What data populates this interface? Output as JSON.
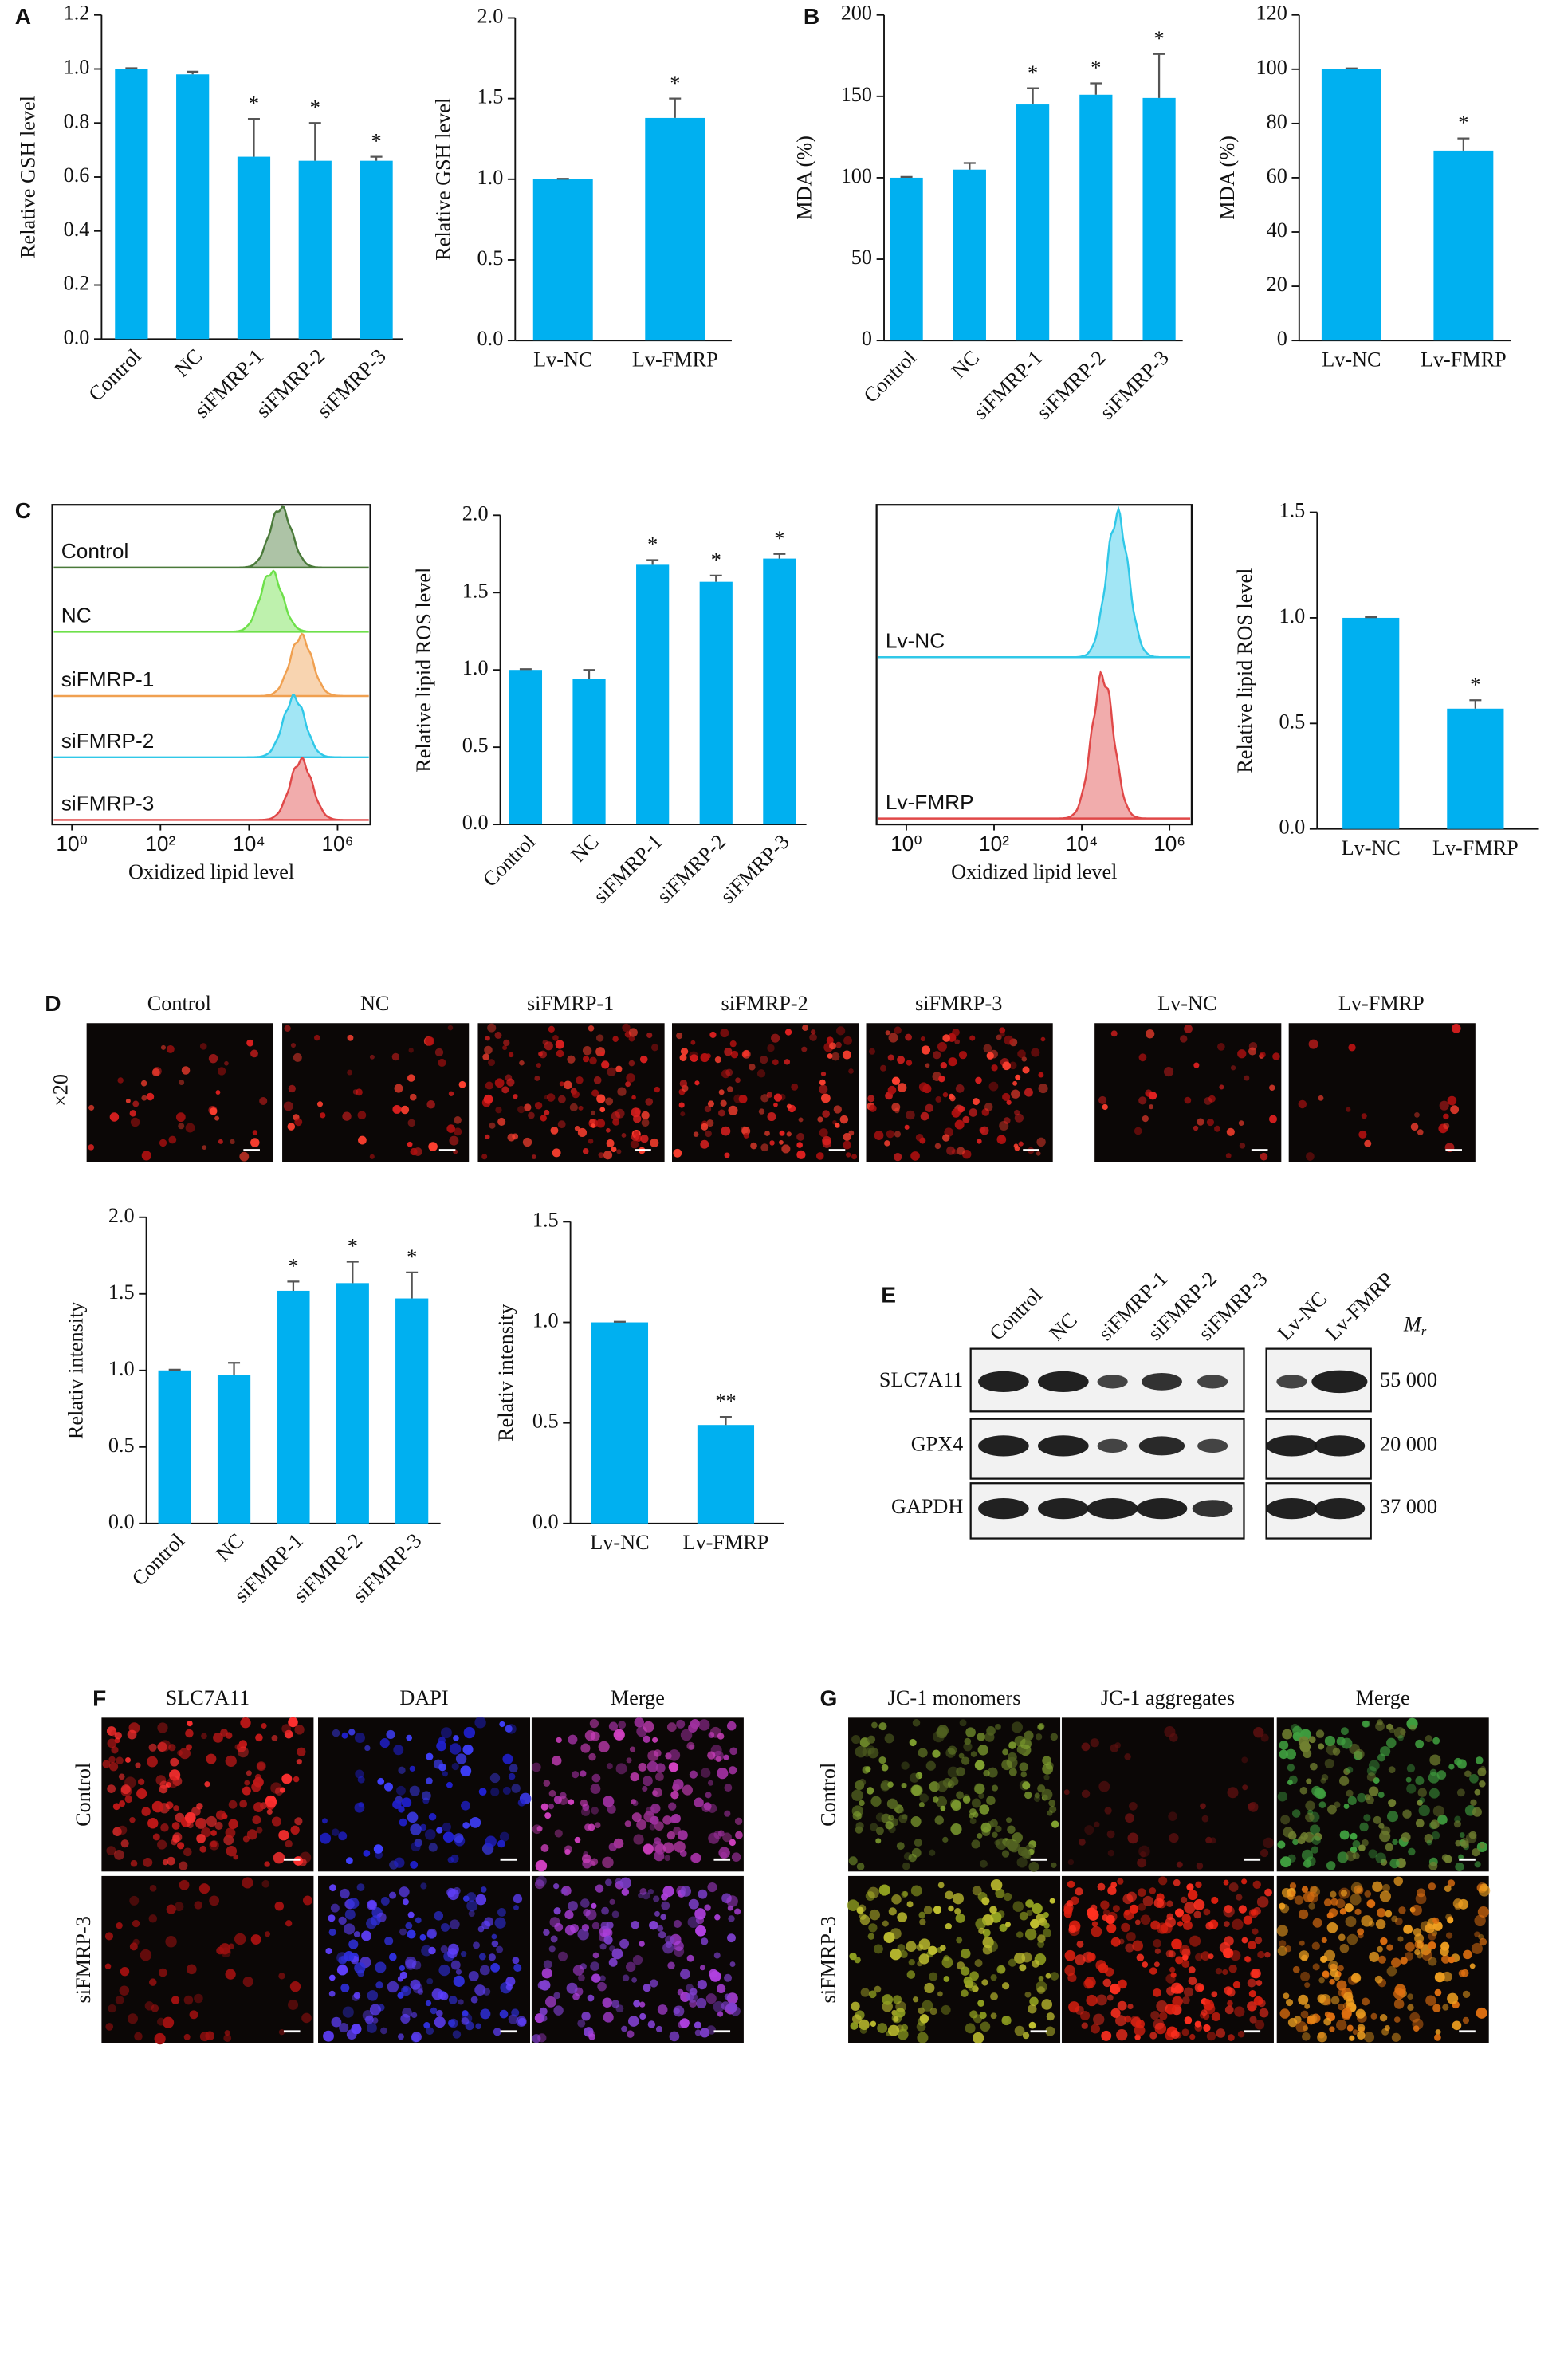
{
  "panel_labels": [
    "A",
    "B",
    "C",
    "D",
    "E",
    "F",
    "G"
  ],
  "chart_data": [
    {
      "type": "bar",
      "ylabel": "Relative GSH level",
      "color": "#00b0f0",
      "categories": [
        "Control",
        "NC",
        "siFMRP-1",
        "siFMRP-2",
        "siFMRP-3"
      ],
      "values": [
        1.0,
        0.98,
        0.675,
        0.66,
        0.66
      ],
      "errors": [
        0.003,
        0.01,
        0.14,
        0.14,
        0.015
      ],
      "significance": [
        null,
        null,
        "*",
        "*",
        "*"
      ],
      "ylim": [
        0,
        1.2
      ],
      "yticks": [
        {
          "value": 0,
          "label": "0.0"
        },
        0.2,
        0.4,
        0.6,
        0.8,
        {
          "value": 1,
          "label": "1.0"
        },
        1.2
      ]
    },
    {
      "type": "bar",
      "ylabel": "Relative GSH level",
      "color": "#00b0f0",
      "categories": [
        "Lv-NC",
        "Lv-FMRP"
      ],
      "values": [
        1.0,
        1.38
      ],
      "errors": [
        0.003,
        0.12
      ],
      "significance": [
        null,
        "*"
      ],
      "ylim": [
        0,
        2
      ],
      "yticks": [
        {
          "value": 0,
          "label": "0.0"
        },
        0.5,
        {
          "value": 1,
          "label": "1.0"
        },
        1.5,
        {
          "value": 2,
          "label": "2.0"
        }
      ]
    },
    {
      "type": "bar",
      "ylabel": "MDA (%)",
      "color": "#00b0f0",
      "categories": [
        "Control",
        "NC",
        "siFMRP-1",
        "siFMRP-2",
        "siFMRP-3"
      ],
      "values": [
        100,
        105,
        145,
        151,
        149
      ],
      "errors": [
        0.5,
        4,
        10,
        7,
        27
      ],
      "significance": [
        null,
        null,
        "*",
        "*",
        "*"
      ],
      "ylim": [
        0,
        200
      ],
      "yticks": [
        0,
        50,
        100,
        150,
        200
      ]
    },
    {
      "type": "bar",
      "ylabel": "MDA (%)",
      "color": "#00b0f0",
      "categories": [
        "Lv-NC",
        "Lv-FMRP"
      ],
      "values": [
        100,
        70
      ],
      "errors": [
        0.3,
        4.5
      ],
      "significance": [
        null,
        "*"
      ],
      "ylim": [
        0,
        120
      ],
      "yticks": [
        0,
        20,
        40,
        60,
        80,
        100,
        120
      ]
    },
    {
      "type": "density",
      "xlabel": "Oxidized lipid level",
      "log_x": true,
      "xlim": [
        0.36,
        5500000
      ],
      "xticks": [
        {
          "value": 1,
          "label": "10⁰"
        },
        {
          "value": 100,
          "label": "10²"
        },
        {
          "value": 10000,
          "label": "10⁴"
        },
        {
          "value": 1000000,
          "label": "10⁶"
        }
      ],
      "series": [
        {
          "name": "Control",
          "color": "#4a7a3a",
          "peak": 52000
        },
        {
          "name": "NC",
          "color": "#6ee04a",
          "peak": 32000
        },
        {
          "name": "siFMRP-1",
          "color": "#f0a050",
          "peak": 150000
        },
        {
          "name": "siFMRP-2",
          "color": "#30c8e8",
          "peak": 105000
        },
        {
          "name": "siFMRP-3",
          "color": "#e04848",
          "peak": 150000
        }
      ]
    },
    {
      "type": "bar",
      "ylabel": "Relative lipid ROS level",
      "color": "#00b0f0",
      "categories": [
        "Control",
        "NC",
        "siFMRP-1",
        "siFMRP-2",
        "siFMRP-3"
      ],
      "values": [
        1.0,
        0.94,
        1.68,
        1.57,
        1.72
      ],
      "errors": [
        0.005,
        0.06,
        0.03,
        0.04,
        0.03
      ],
      "significance": [
        null,
        null,
        "*",
        "*",
        "*"
      ],
      "ylim": [
        0,
        2
      ],
      "yticks": [
        {
          "value": 0,
          "label": "0.0"
        },
        0.5,
        {
          "value": 1,
          "label": "1.0"
        },
        1.5,
        {
          "value": 2,
          "label": "2.0"
        }
      ]
    },
    {
      "type": "density",
      "xlabel": "Oxidized lipid level",
      "log_x": true,
      "xlim": [
        0.21,
        3200000
      ],
      "xticks": [
        {
          "value": 1,
          "label": "10⁰"
        },
        {
          "value": 100,
          "label": "10²"
        },
        {
          "value": 10000,
          "label": "10⁴"
        },
        {
          "value": 1000000,
          "label": "10⁶"
        }
      ],
      "series": [
        {
          "name": "Lv-NC",
          "color": "#30c8e8",
          "peak": 65000
        },
        {
          "name": "Lv-FMRP",
          "color": "#e04848",
          "peak": 30000
        }
      ]
    },
    {
      "type": "bar",
      "ylabel": "Relative lipid ROS level",
      "color": "#00b0f0",
      "categories": [
        "Lv-NC",
        "Lv-FMRP"
      ],
      "values": [
        1.0,
        0.57
      ],
      "errors": [
        0.003,
        0.04
      ],
      "significance": [
        null,
        "*"
      ],
      "ylim": [
        0,
        1.5
      ],
      "yticks": [
        {
          "value": 0,
          "label": "0.0"
        },
        0.5,
        {
          "value": 1,
          "label": "1.0"
        },
        1.5
      ]
    },
    {
      "type": "bar",
      "ylabel": "Relativ intensity",
      "color": "#00b0f0",
      "categories": [
        "Control",
        "NC",
        "siFMRP-1",
        "siFMRP-2",
        "siFMRP-3"
      ],
      "values": [
        1.0,
        0.97,
        1.52,
        1.57,
        1.47
      ],
      "errors": [
        0.005,
        0.08,
        0.06,
        0.14,
        0.17
      ],
      "significance": [
        null,
        null,
        "*",
        "*",
        "*"
      ],
      "ylim": [
        0,
        2
      ],
      "yticks": [
        {
          "value": 0,
          "label": "0.0"
        },
        0.5,
        {
          "value": 1,
          "label": "1.0"
        },
        1.5,
        {
          "value": 2,
          "label": "2.0"
        }
      ]
    },
    {
      "type": "bar",
      "ylabel": "Relativ intensity",
      "color": "#00b0f0",
      "categories": [
        "Lv-NC",
        "Lv-FMRP"
      ],
      "values": [
        1.0,
        0.49
      ],
      "errors": [
        0.003,
        0.04
      ],
      "significance": [
        null,
        "**"
      ],
      "ylim": [
        0,
        1.5
      ],
      "yticks": [
        {
          "value": 0,
          "label": "0.0"
        },
        0.5,
        {
          "value": 1,
          "label": "1.0"
        },
        1.5
      ]
    }
  ],
  "micrographs_d": {
    "magnification": "×20",
    "columns": [
      "Control",
      "NC",
      "siFMRP-1",
      "siFMRP-2",
      "siFMRP-3",
      "Lv-NC",
      "Lv-FMRP"
    ]
  },
  "western_blot": {
    "lanes": [
      "Control",
      "NC",
      "siFMRP-1",
      "siFMRP-2",
      "siFMRP-3",
      "Lv-NC",
      "Lv-FMRP"
    ],
    "proteins": [
      "SLC7A11",
      "GPX4",
      "GAPDH"
    ],
    "markers": [
      "55 000",
      "20 000",
      "37 000"
    ],
    "mr_label": "M",
    "mr_subscript": "r"
  },
  "panel_f": {
    "columns": [
      "SLC7A11",
      "DAPI",
      "Merge"
    ],
    "rows": [
      "Control",
      "siFMRP-3"
    ]
  },
  "panel_g": {
    "columns": [
      "JC-1 monomers",
      "JC-1 aggregates",
      "Merge"
    ],
    "rows": [
      "Control",
      "siFMRP-3"
    ]
  }
}
